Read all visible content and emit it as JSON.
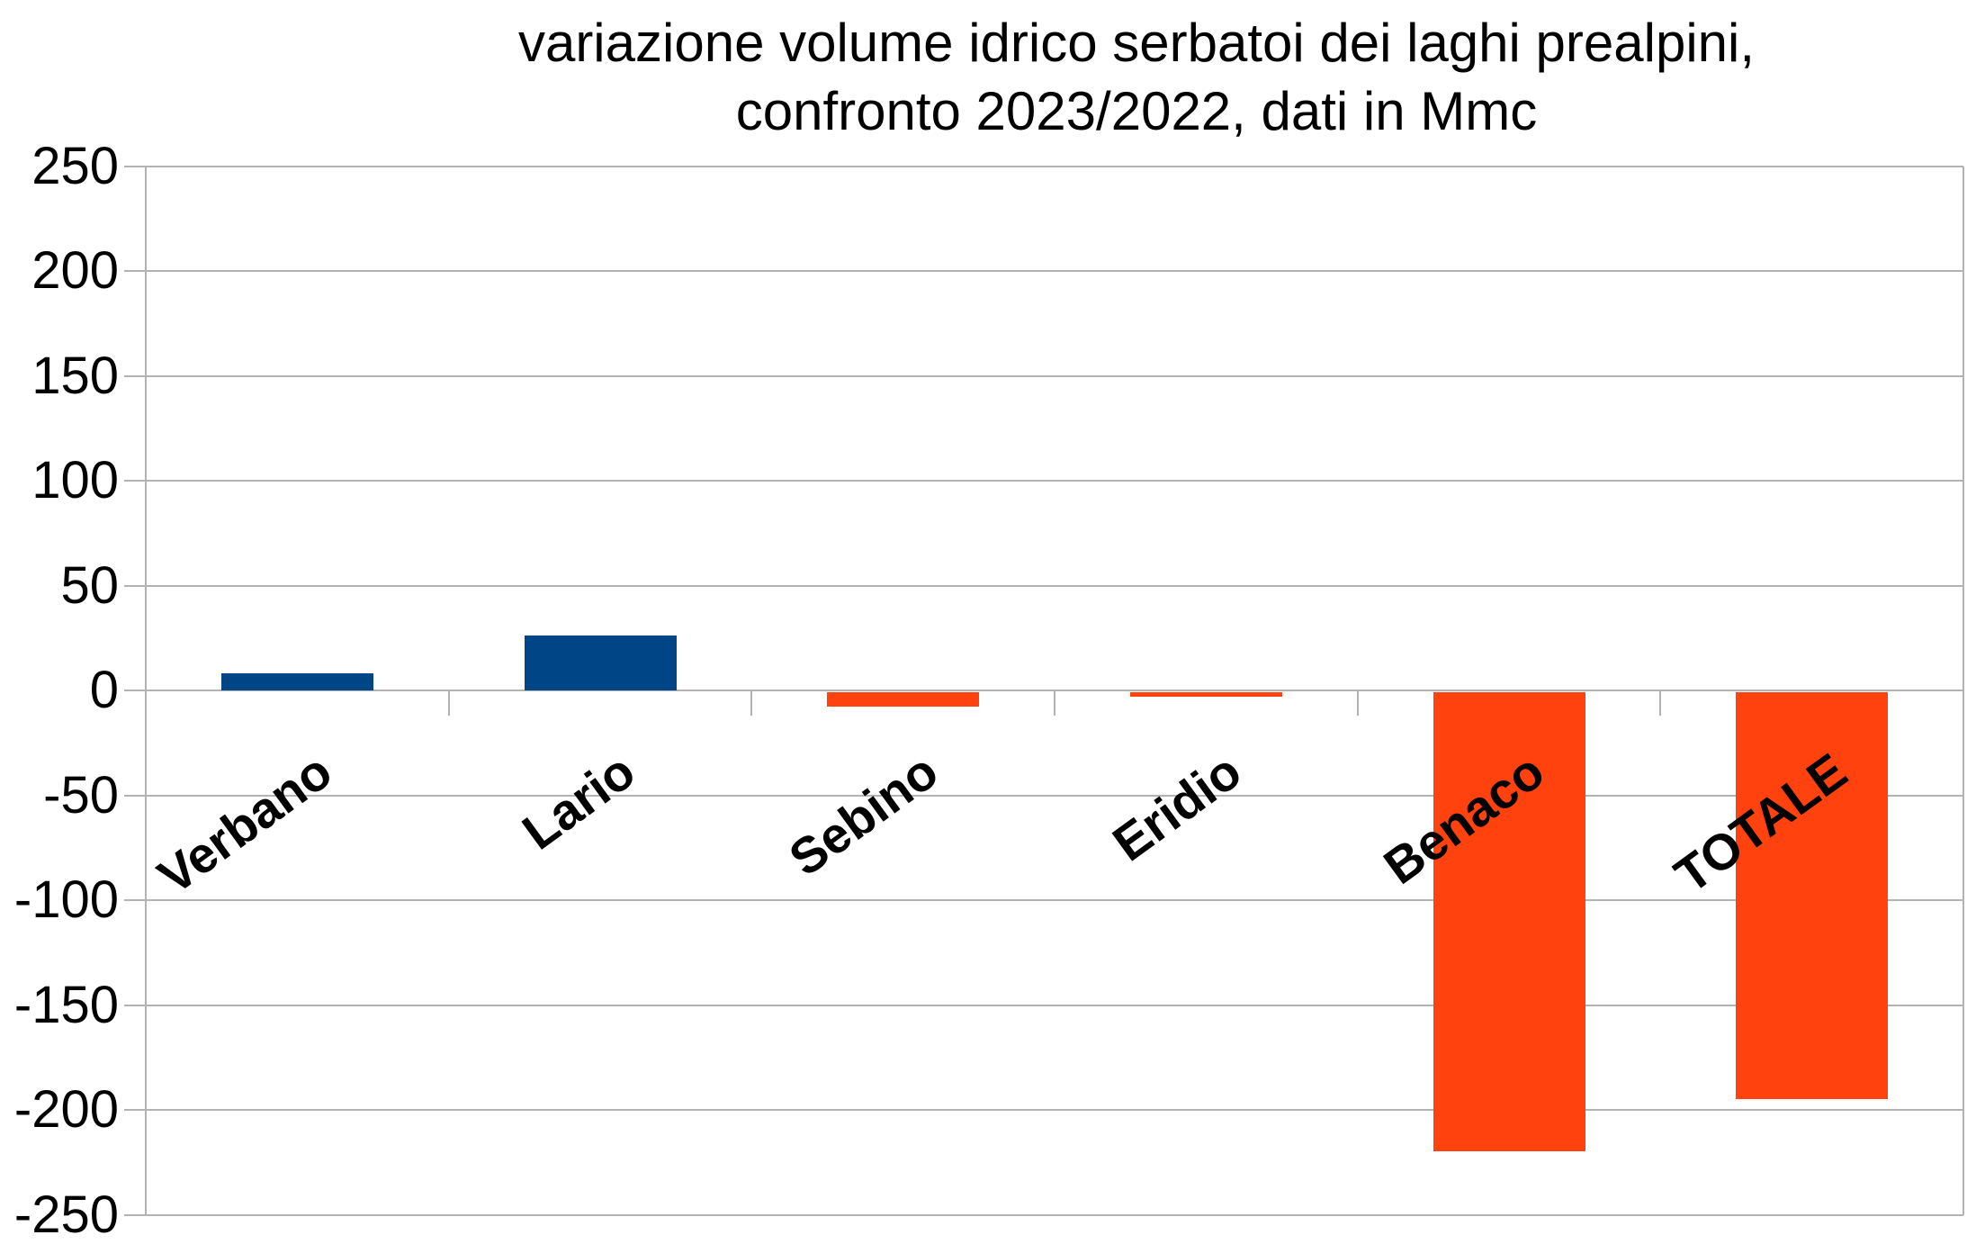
{
  "title": {
    "line1": "variazione volume idrico serbatoi dei laghi prealpini,",
    "line2": "confronto 2023/2022, dati in Mmc"
  },
  "chart_data": {
    "type": "bar",
    "title": "variazione volume idrico serbatoi dei laghi prealpini, confronto 2023/2022, dati in Mmc",
    "unit": "Mmc",
    "categories": [
      "Verbano",
      "Lario",
      "Sebino",
      "Eridio",
      "Benaco",
      "TOTALE"
    ],
    "values": [
      8,
      26,
      -7,
      -2,
      -219,
      -194
    ],
    "bar_colors": [
      "#004586",
      "#004586",
      "#FF420E",
      "#FF420E",
      "#FF420E",
      "#FF420E"
    ],
    "ylim": [
      -250,
      250
    ],
    "ytick_step": 50,
    "yticks": [
      250,
      200,
      150,
      100,
      50,
      0,
      -50,
      -100,
      -150,
      -200,
      -250
    ],
    "grid": "horizontal",
    "legend": "none",
    "colors": {
      "positive_bar": "#004586",
      "negative_bar": "#FF420E",
      "gridline": "#B3B3B3",
      "axis": "#B3B3B3",
      "text": "#000000",
      "background": "#FFFFFF"
    }
  }
}
